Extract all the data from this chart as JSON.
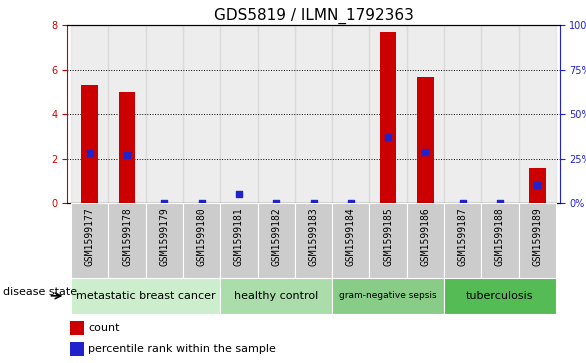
{
  "title": "GDS5819 / ILMN_1792363",
  "samples": [
    "GSM1599177",
    "GSM1599178",
    "GSM1599179",
    "GSM1599180",
    "GSM1599181",
    "GSM1599182",
    "GSM1599183",
    "GSM1599184",
    "GSM1599185",
    "GSM1599186",
    "GSM1599187",
    "GSM1599188",
    "GSM1599189"
  ],
  "count_values": [
    5.3,
    5.0,
    0.0,
    0.0,
    0.0,
    0.0,
    0.0,
    0.0,
    7.7,
    5.7,
    0.0,
    0.0,
    1.6
  ],
  "percentile_values": [
    28,
    27,
    0,
    0,
    5,
    0,
    0,
    0,
    37,
    29,
    0,
    0,
    10
  ],
  "ylim_left": [
    0,
    8
  ],
  "ylim_right": [
    0,
    100
  ],
  "yticks_left": [
    0,
    2,
    4,
    6,
    8
  ],
  "yticks_right": [
    0,
    25,
    50,
    75,
    100
  ],
  "bar_color": "#cc0000",
  "dot_color": "#2222cc",
  "grid_color": "#000000",
  "sample_bg_color": "#cccccc",
  "groups": [
    {
      "label": "metastatic breast cancer",
      "start": 0,
      "end": 4,
      "color": "#cceecc"
    },
    {
      "label": "healthy control",
      "start": 4,
      "end": 7,
      "color": "#aaddaa"
    },
    {
      "label": "gram-negative sepsis",
      "start": 7,
      "end": 10,
      "color": "#88cc88"
    },
    {
      "label": "tuberculosis",
      "start": 10,
      "end": 13,
      "color": "#55bb55"
    }
  ],
  "legend_items": [
    {
      "label": "count",
      "color": "#cc0000"
    },
    {
      "label": "percentile rank within the sample",
      "color": "#2222cc"
    }
  ],
  "bar_width": 0.45,
  "dot_size": 25,
  "title_fontsize": 11,
  "tick_fontsize": 7,
  "label_fontsize": 8,
  "group_label_fontsize": 8,
  "disease_state_fontsize": 8
}
